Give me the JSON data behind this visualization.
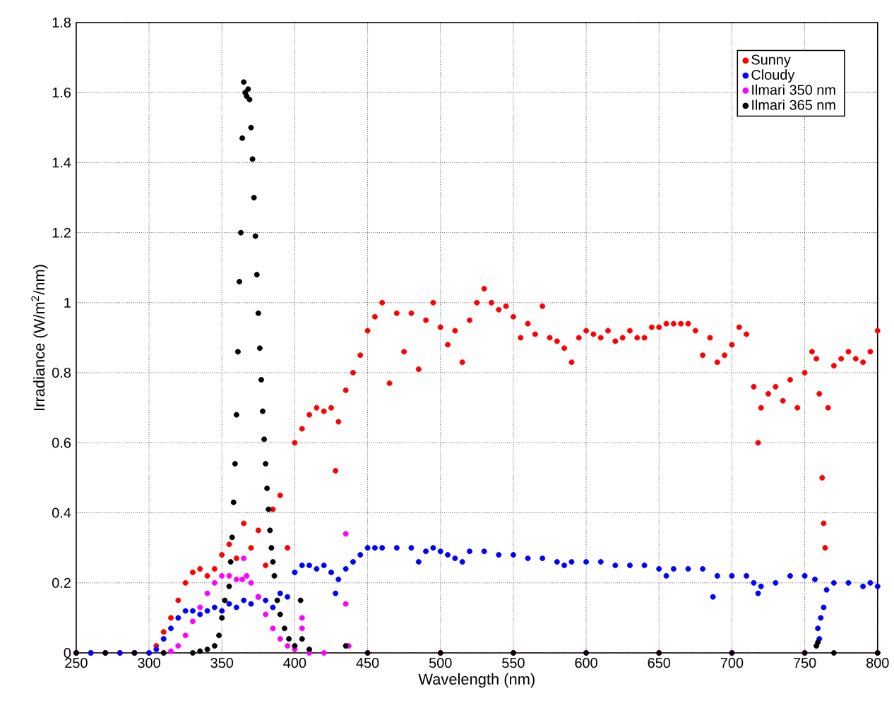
{
  "chart_data": {
    "type": "scatter",
    "xlabel": "Wavelength (nm)",
    "ylabel": "Irradiance (W/m$^{2}$/nm)",
    "xlim": [
      250,
      800
    ],
    "ylim": [
      0,
      1.8
    ],
    "xticks": [
      250,
      300,
      350,
      400,
      450,
      500,
      550,
      600,
      650,
      700,
      750,
      800
    ],
    "yticks": [
      0,
      0.2,
      0.4,
      0.6,
      0.8,
      1,
      1.2,
      1.4,
      1.6,
      1.8
    ],
    "grid": true,
    "legend": "top right",
    "marker": "circle",
    "series": [
      {
        "name": "Sunny",
        "color": "#ff0000",
        "x": [
          250,
          260,
          270,
          280,
          290,
          300,
          305,
          310,
          315,
          320,
          325,
          330,
          335,
          340,
          345,
          350,
          355,
          360,
          365,
          370,
          375,
          380,
          385,
          390,
          395,
          400,
          405,
          410,
          415,
          420,
          425,
          428,
          430,
          435,
          440,
          445,
          450,
          455,
          460,
          465,
          470,
          475,
          480,
          485,
          490,
          495,
          500,
          505,
          510,
          515,
          520,
          525,
          530,
          535,
          540,
          545,
          550,
          555,
          560,
          565,
          570,
          575,
          580,
          585,
          590,
          595,
          600,
          605,
          610,
          615,
          620,
          625,
          630,
          635,
          640,
          645,
          650,
          655,
          660,
          665,
          670,
          675,
          680,
          685,
          690,
          695,
          700,
          705,
          710,
          715,
          718,
          720,
          725,
          730,
          735,
          740,
          745,
          750,
          755,
          758,
          760,
          762,
          763,
          764,
          766,
          770,
          775,
          780,
          785,
          790,
          795,
          800
        ],
        "values": [
          0,
          0,
          0,
          0,
          0,
          0,
          0.02,
          0.06,
          0.1,
          0.15,
          0.2,
          0.23,
          0.24,
          0.22,
          0.24,
          0.28,
          0.31,
          0.27,
          0.37,
          0.3,
          0.35,
          0.25,
          0.41,
          0.45,
          0.3,
          0.6,
          0.64,
          0.68,
          0.7,
          0.69,
          0.7,
          0.52,
          0.66,
          0.75,
          0.8,
          0.85,
          0.92,
          0.96,
          1,
          0.77,
          0.97,
          0.86,
          0.97,
          0.81,
          0.95,
          1,
          0.93,
          0.88,
          0.92,
          0.83,
          0.95,
          1,
          1.04,
          1,
          0.98,
          0.99,
          0.96,
          0.9,
          0.94,
          0.91,
          0.99,
          0.9,
          0.89,
          0.87,
          0.83,
          0.9,
          0.92,
          0.91,
          0.9,
          0.92,
          0.89,
          0.9,
          0.92,
          0.9,
          0.9,
          0.93,
          0.93,
          0.94,
          0.94,
          0.94,
          0.94,
          0.92,
          0.85,
          0.9,
          0.83,
          0.85,
          0.88,
          0.93,
          0.91,
          0.76,
          0.6,
          0.7,
          0.74,
          0.76,
          0.72,
          0.78,
          0.7,
          0.8,
          0.86,
          0.84,
          0.74,
          0.5,
          0.37,
          0.3,
          0.7,
          0.82,
          0.84,
          0.86,
          0.84,
          0.83,
          0.86,
          0.92
        ]
      },
      {
        "name": "Cloudy",
        "color": "#0000ff",
        "x": [
          250,
          260,
          270,
          280,
          290,
          300,
          305,
          310,
          315,
          320,
          325,
          330,
          335,
          340,
          345,
          350,
          355,
          360,
          365,
          370,
          375,
          380,
          385,
          390,
          395,
          400,
          405,
          410,
          415,
          420,
          425,
          428,
          430,
          435,
          440,
          445,
          450,
          455,
          460,
          470,
          480,
          485,
          490,
          495,
          500,
          505,
          510,
          515,
          520,
          530,
          540,
          550,
          560,
          570,
          580,
          585,
          590,
          600,
          610,
          620,
          630,
          640,
          650,
          655,
          660,
          670,
          680,
          687,
          690,
          700,
          710,
          715,
          718,
          720,
          730,
          740,
          750,
          757,
          759,
          760,
          761,
          763,
          765,
          770,
          780,
          790,
          795,
          800
        ],
        "values": [
          0,
          0,
          0,
          0,
          0,
          0,
          0.01,
          0.04,
          0.07,
          0.1,
          0.12,
          0.12,
          0.11,
          0.12,
          0.13,
          0.12,
          0.14,
          0.13,
          0.15,
          0.14,
          0.16,
          0.15,
          0.13,
          0.17,
          0.16,
          0.23,
          0.25,
          0.25,
          0.24,
          0.25,
          0.23,
          0.17,
          0.21,
          0.24,
          0.26,
          0.28,
          0.3,
          0.3,
          0.3,
          0.3,
          0.3,
          0.26,
          0.29,
          0.3,
          0.29,
          0.28,
          0.27,
          0.26,
          0.29,
          0.29,
          0.28,
          0.28,
          0.27,
          0.27,
          0.26,
          0.25,
          0.26,
          0.26,
          0.26,
          0.25,
          0.25,
          0.25,
          0.24,
          0.22,
          0.24,
          0.24,
          0.24,
          0.16,
          0.22,
          0.22,
          0.22,
          0.2,
          0.17,
          0.19,
          0.2,
          0.22,
          0.22,
          0.21,
          0.07,
          0.04,
          0.1,
          0.13,
          0.18,
          0.2,
          0.2,
          0.19,
          0.2,
          0.19
        ]
      },
      {
        "name": "Ilmari 350 nm",
        "color": "#ff00ff",
        "x": [
          250,
          270,
          290,
          310,
          315,
          320,
          325,
          330,
          335,
          340,
          345,
          350,
          355,
          360,
          364,
          365,
          367,
          370,
          375,
          380,
          385,
          390,
          395,
          400,
          405,
          405,
          410,
          420,
          435,
          435,
          437,
          450,
          500,
          550,
          600,
          650,
          700,
          750,
          800
        ],
        "values": [
          0,
          0,
          0,
          0,
          0.005,
          0.02,
          0.05,
          0.09,
          0.13,
          0.17,
          0.2,
          0.22,
          0.22,
          0.21,
          0.21,
          0.27,
          0.22,
          0.2,
          0.16,
          0.11,
          0.07,
          0.04,
          0.02,
          0.01,
          0.1,
          0.07,
          0,
          0,
          0.34,
          0.14,
          0.02,
          0,
          0,
          0,
          0,
          0,
          0,
          0,
          0
        ]
      },
      {
        "name": "Ilmari 365 nm",
        "color": "#000000",
        "x": [
          250,
          270,
          290,
          310,
          330,
          335,
          340,
          345,
          348,
          350,
          352,
          355,
          356,
          357,
          358,
          359,
          360,
          361,
          362,
          363,
          364,
          365,
          366,
          367,
          368,
          369,
          370,
          371,
          372,
          373,
          374,
          375,
          376,
          377,
          378,
          379,
          380,
          381,
          382,
          383,
          384,
          385,
          386,
          388,
          390,
          393,
          396,
          400,
          404,
          405,
          410,
          435,
          450,
          500,
          550,
          600,
          650,
          700,
          750,
          758,
          759,
          770,
          800
        ],
        "values": [
          0,
          0,
          0,
          0,
          0,
          0.005,
          0.01,
          0.02,
          0.05,
          0.1,
          0.15,
          0.19,
          0.26,
          0.33,
          0.43,
          0.54,
          0.68,
          0.86,
          1.06,
          1.2,
          1.47,
          1.63,
          1.6,
          1.59,
          1.61,
          1.58,
          1.5,
          1.41,
          1.3,
          1.19,
          1.08,
          0.97,
          0.87,
          0.78,
          0.69,
          0.61,
          0.54,
          0.47,
          0.41,
          0.35,
          0.3,
          0.26,
          0.22,
          0.15,
          0.11,
          0.07,
          0.04,
          0.02,
          0.15,
          0.04,
          0.01,
          0.02,
          0,
          0,
          0,
          0,
          0,
          0,
          0,
          0.02,
          0.03,
          0,
          0
        ]
      }
    ]
  }
}
